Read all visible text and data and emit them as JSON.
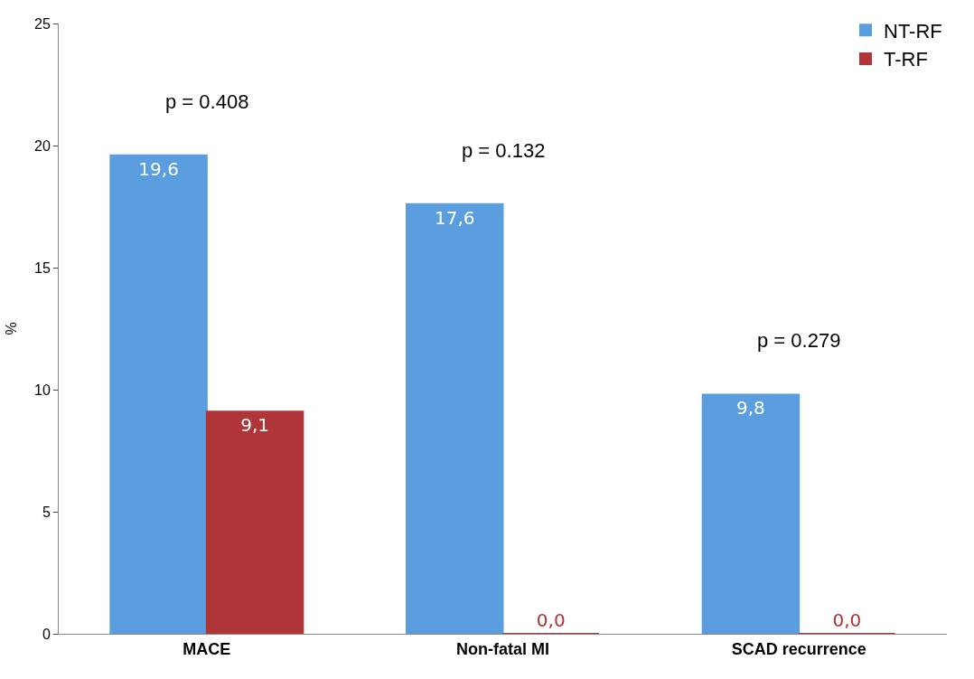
{
  "chart_data": {
    "type": "bar",
    "ylabel": "%",
    "categories": [
      "MACE",
      "Non-fatal MI",
      "SCAD recurrence"
    ],
    "series": [
      {
        "name": "NT-RF",
        "color": "#5b9ee0",
        "values": [
          19.6,
          17.6,
          9.8
        ],
        "value_labels": [
          "19,6",
          "17,6",
          "9,8"
        ]
      },
      {
        "name": "T-RF",
        "color": "#b03538",
        "values": [
          9.1,
          0.0,
          0.0
        ],
        "value_labels": [
          "9,1",
          "0,0",
          "0,0"
        ]
      }
    ],
    "ylim": [
      0,
      25
    ],
    "yticks": [
      0,
      5,
      10,
      15,
      20,
      25
    ],
    "legend": "top right",
    "annotations": [
      "p = 0.408",
      "p = 0.132",
      "p = 0.279"
    ]
  }
}
